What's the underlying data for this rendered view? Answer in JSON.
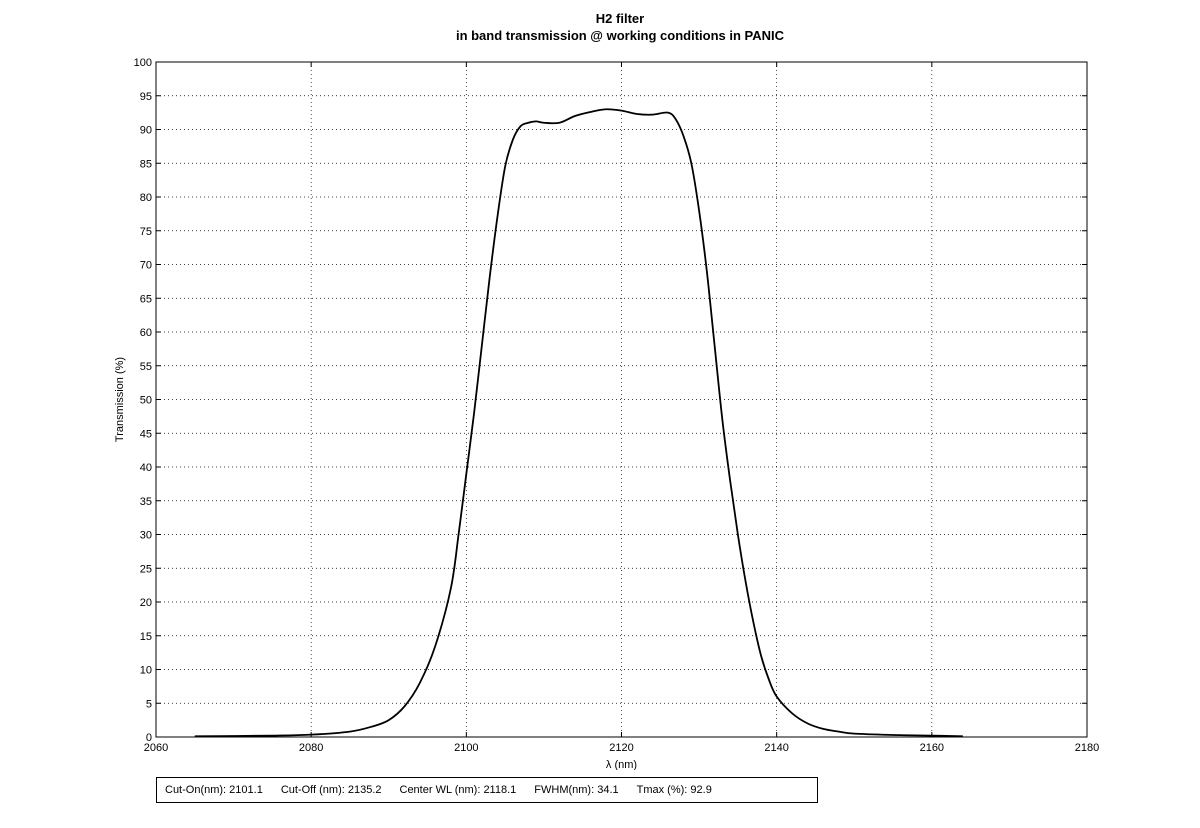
{
  "chart_data": {
    "type": "line",
    "title": "H2 filter",
    "subtitle": "in band transmission @ working conditions in PANIC",
    "xlabel": "λ (nm)",
    "ylabel": "Transmission (%)",
    "xlim": [
      2060,
      2180
    ],
    "ylim": [
      0,
      100
    ],
    "xticks": [
      "2060",
      "2080",
      "2100",
      "2120",
      "2140",
      "2160",
      "2180"
    ],
    "yticks": [
      "0",
      "5",
      "10",
      "15",
      "20",
      "25",
      "30",
      "35",
      "40",
      "45",
      "50",
      "55",
      "60",
      "65",
      "70",
      "75",
      "80",
      "85",
      "90",
      "95",
      "100"
    ],
    "grid": true,
    "series": [
      {
        "x": [
          2065,
          2070,
          2075,
          2080,
          2085,
          2088,
          2090,
          2092,
          2094,
          2096,
          2098,
          2099,
          2100,
          2101,
          2102,
          2103,
          2104,
          2105,
          2106,
          2107,
          2108,
          2109,
          2110,
          2112,
          2114,
          2116,
          2118,
          2120,
          2122,
          2124,
          2126,
          2127,
          2128,
          2129,
          2130,
          2131,
          2132,
          2133,
          2134,
          2135,
          2136,
          2137,
          2138,
          2139,
          2140,
          2142,
          2144,
          2146,
          2148,
          2150,
          2155,
          2160,
          2164
        ],
        "y": [
          0.1,
          0.15,
          0.2,
          0.35,
          0.8,
          1.6,
          2.5,
          4.5,
          8.0,
          13.5,
          22.0,
          30.0,
          39.0,
          48.0,
          58.0,
          68.0,
          77.0,
          84.5,
          88.5,
          90.5,
          91.0,
          91.2,
          91.0,
          91.0,
          92.0,
          92.6,
          93.0,
          92.8,
          92.3,
          92.2,
          92.5,
          91.5,
          89.0,
          85.0,
          78.0,
          69.0,
          58.0,
          47.0,
          38.0,
          30.0,
          23.0,
          17.0,
          12.0,
          8.5,
          6.0,
          3.5,
          2.0,
          1.2,
          0.8,
          0.5,
          0.3,
          0.2,
          0.1
        ],
        "color": "#000000"
      }
    ]
  },
  "stats": {
    "cut_on": "Cut-On(nm): 2101.1",
    "cut_off": "Cut-Off (nm): 2135.2",
    "center_wl": "Center WL (nm): 2118.1",
    "fwhm": "FWHM(nm): 34.1",
    "tmax": "Tmax (%): 92.9"
  }
}
